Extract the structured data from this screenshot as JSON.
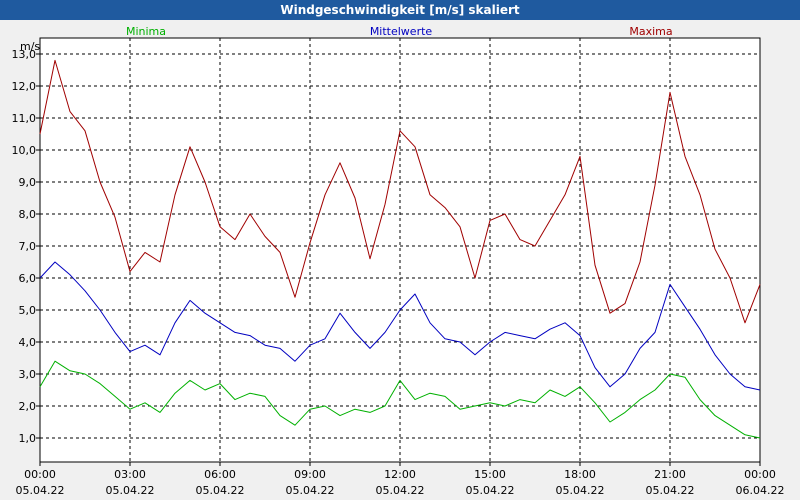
{
  "title": "Windgeschwindigkeit [m/s] skaliert",
  "colors": {
    "min": "#00b000",
    "mean": "#0000c0",
    "max": "#a00000",
    "titlebar": "#1f5a9f"
  },
  "chart_data": {
    "type": "line",
    "title": "Windgeschwindigkeit [m/s] skaliert",
    "ylabel": "m/s",
    "ylim": [
      0.25,
      13.5
    ],
    "xlim_hours": [
      0,
      24
    ],
    "y_ticks": [
      1.0,
      2.0,
      3.0,
      4.0,
      5.0,
      6.0,
      7.0,
      8.0,
      9.0,
      10.0,
      11.0,
      12.0,
      13.0
    ],
    "y_tick_labels": [
      "1,0",
      "2,0",
      "3,0",
      "4,0",
      "5,0",
      "6,0",
      "7,0",
      "8,0",
      "9,0",
      "10,0",
      "11,0",
      "12,0",
      "13,0"
    ],
    "x_ticks": [
      {
        "time": "00:00",
        "date": "05.04.22"
      },
      {
        "time": "03:00",
        "date": "05.04.22"
      },
      {
        "time": "06:00",
        "date": "05.04.22"
      },
      {
        "time": "09:00",
        "date": "05.04.22"
      },
      {
        "time": "12:00",
        "date": "05.04.22"
      },
      {
        "time": "15:00",
        "date": "05.04.22"
      },
      {
        "time": "18:00",
        "date": "05.04.22"
      },
      {
        "time": "21:00",
        "date": "05.04.22"
      },
      {
        "time": "00:00",
        "date": "06.04.22"
      }
    ],
    "x_hours": [
      0,
      0.5,
      1,
      1.5,
      2,
      2.5,
      3,
      3.5,
      4,
      4.5,
      5,
      5.5,
      6,
      6.5,
      7,
      7.5,
      8,
      8.5,
      9,
      9.5,
      10,
      10.5,
      11,
      11.5,
      12,
      12.5,
      13,
      13.5,
      14,
      14.5,
      15,
      15.5,
      16,
      16.5,
      17,
      17.5,
      18,
      18.5,
      19,
      19.5,
      20,
      20.5,
      21,
      21.5,
      22,
      22.5,
      23,
      23.5,
      24
    ],
    "series": [
      {
        "name": "Minima",
        "values": [
          2.6,
          3.4,
          3.1,
          3.0,
          2.7,
          2.3,
          1.9,
          2.1,
          1.8,
          2.4,
          2.8,
          2.5,
          2.7,
          2.2,
          2.4,
          2.3,
          1.7,
          1.4,
          1.9,
          2.0,
          1.7,
          1.9,
          1.8,
          2.0,
          2.8,
          2.2,
          2.4,
          2.3,
          1.9,
          2.0,
          2.1,
          2.0,
          2.2,
          2.1,
          2.5,
          2.3,
          2.6,
          2.1,
          1.5,
          1.8,
          2.2,
          2.5,
          3.0,
          2.9,
          2.2,
          1.7,
          1.4,
          1.1,
          1.0
        ]
      },
      {
        "name": "Mittelwerte",
        "values": [
          6.0,
          6.5,
          6.1,
          5.6,
          5.0,
          4.3,
          3.7,
          3.9,
          3.6,
          4.6,
          5.3,
          4.9,
          4.6,
          4.3,
          4.2,
          3.9,
          3.8,
          3.4,
          3.9,
          4.1,
          4.9,
          4.3,
          3.8,
          4.3,
          5.0,
          5.5,
          4.6,
          4.1,
          4.0,
          3.6,
          4.0,
          4.3,
          4.2,
          4.1,
          4.4,
          4.6,
          4.2,
          3.2,
          2.6,
          3.0,
          3.8,
          4.3,
          5.8,
          5.1,
          4.4,
          3.6,
          3.0,
          2.6,
          2.5
        ]
      },
      {
        "name": "Maxima",
        "values": [
          10.5,
          12.8,
          11.2,
          10.6,
          9.0,
          7.9,
          6.2,
          6.8,
          6.5,
          8.6,
          10.1,
          9.0,
          7.6,
          7.2,
          8.0,
          7.3,
          6.8,
          5.4,
          7.1,
          8.6,
          9.6,
          8.5,
          6.6,
          8.3,
          10.6,
          10.1,
          8.6,
          8.2,
          7.6,
          6.0,
          7.8,
          8.0,
          7.2,
          7.0,
          7.8,
          8.6,
          9.8,
          6.4,
          4.9,
          5.2,
          6.5,
          8.9,
          11.8,
          9.8,
          8.6,
          6.9,
          6.0,
          4.6,
          5.8
        ]
      }
    ]
  }
}
